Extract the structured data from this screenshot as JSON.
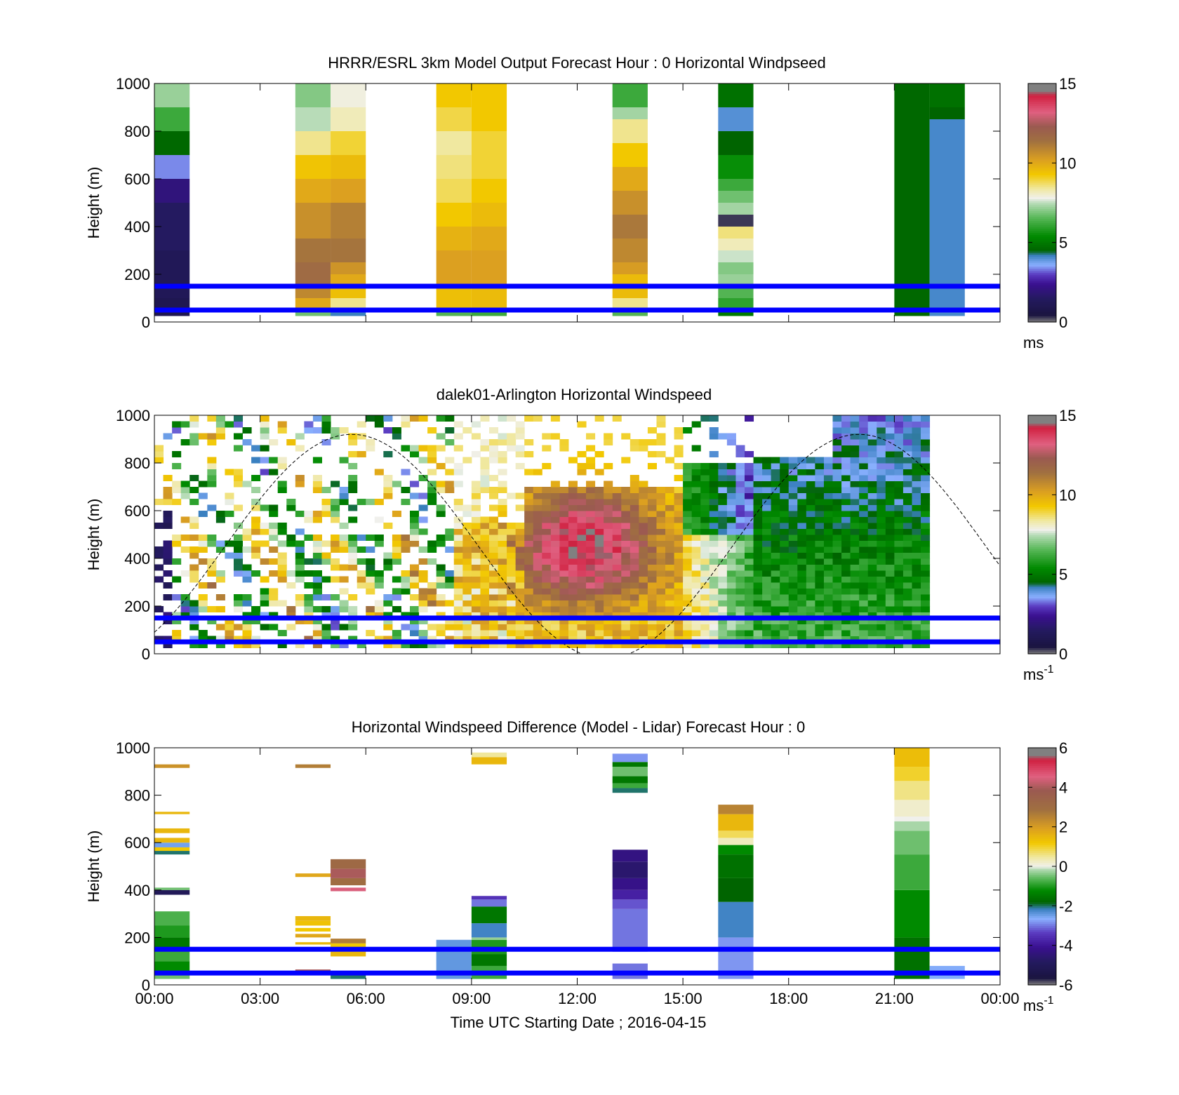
{
  "colors": {
    "reference_line": "#0000ff",
    "speed_colormap": [
      [
        0,
        "#808080"
      ],
      [
        0.03,
        "#1a1440"
      ],
      [
        0.1,
        "#241a60"
      ],
      [
        0.16,
        "#3a1090"
      ],
      [
        0.2,
        "#5a3ac0"
      ],
      [
        0.24,
        "#8ab0ff"
      ],
      [
        0.28,
        "#3a80c0"
      ],
      [
        0.3,
        "#006400"
      ],
      [
        0.36,
        "#008a00"
      ],
      [
        0.44,
        "#5ab85a"
      ],
      [
        0.5,
        "#b8dcb8"
      ],
      [
        0.52,
        "#f0f0ec"
      ],
      [
        0.56,
        "#f0e8a0"
      ],
      [
        0.62,
        "#f2c800"
      ],
      [
        0.68,
        "#dca020"
      ],
      [
        0.76,
        "#a07040"
      ],
      [
        0.82,
        "#9a5a50"
      ],
      [
        0.88,
        "#e06080"
      ],
      [
        0.95,
        "#d02040"
      ],
      [
        0.97,
        "#808080"
      ],
      [
        1,
        "#808080"
      ]
    ],
    "diff_colormap": [
      [
        0,
        "#808080"
      ],
      [
        0.03,
        "#1a1440"
      ],
      [
        0.1,
        "#241a60"
      ],
      [
        0.16,
        "#3a1090"
      ],
      [
        0.22,
        "#5a3ac0"
      ],
      [
        0.28,
        "#8ab0ff"
      ],
      [
        0.32,
        "#3a80c0"
      ],
      [
        0.35,
        "#006400"
      ],
      [
        0.4,
        "#008a00"
      ],
      [
        0.45,
        "#5ab85a"
      ],
      [
        0.49,
        "#b8dcb8"
      ],
      [
        0.5,
        "#f0f0ec"
      ],
      [
        0.54,
        "#f0e8a0"
      ],
      [
        0.6,
        "#f2c800"
      ],
      [
        0.66,
        "#dca020"
      ],
      [
        0.74,
        "#a07040"
      ],
      [
        0.82,
        "#9a5a50"
      ],
      [
        0.88,
        "#e06080"
      ],
      [
        0.95,
        "#d02040"
      ],
      [
        0.97,
        "#808080"
      ],
      [
        1,
        "#808080"
      ]
    ]
  },
  "shared": {
    "xlabel": "Time UTC  Starting Date ; 2016-04-15",
    "ylabel": "Height (m)",
    "x_ticks": [
      "00:00",
      "03:00",
      "06:00",
      "09:00",
      "12:00",
      "15:00",
      "18:00",
      "21:00",
      "00:00"
    ],
    "y_ticks": [
      "0",
      "200",
      "400",
      "600",
      "800",
      "1000"
    ]
  },
  "chart_data": [
    {
      "type": "heatmap",
      "title": "HRRR/ESRL 3km Model Output   Forecast Hour : 0 Horizontal Windpseed",
      "ylabel": "Height (m)",
      "xlim": [
        0,
        24
      ],
      "ylim": [
        0,
        1000
      ],
      "colorbar": {
        "label": "ms",
        "ticks": [
          "0",
          "5",
          "10",
          "15"
        ],
        "range": [
          0,
          15
        ]
      },
      "reference_lines_m": [
        50,
        150
      ],
      "columns": [
        {
          "t_start": 0,
          "t_end": 1,
          "cells": [
            [
              25,
              100,
              1
            ],
            [
              100,
              300,
              1.2
            ],
            [
              300,
              500,
              1.5
            ],
            [
              500,
              600,
              2
            ],
            [
              600,
              700,
              3.4
            ],
            [
              700,
              800,
              4.6
            ],
            [
              800,
              900,
              6.2
            ],
            [
              900,
              1000,
              7.2
            ]
          ]
        },
        {
          "t_start": 4,
          "t_end": 5,
          "cells": [
            [
              25,
              50,
              6.8
            ],
            [
              50,
              100,
              10
            ],
            [
              100,
              150,
              10.8
            ],
            [
              150,
              250,
              11.6
            ],
            [
              250,
              350,
              11.3
            ],
            [
              350,
              500,
              10.6
            ],
            [
              500,
              600,
              10
            ],
            [
              600,
              700,
              9.4
            ],
            [
              700,
              800,
              8.5
            ],
            [
              800,
              900,
              7.5
            ],
            [
              900,
              1000,
              7.0
            ]
          ]
        },
        {
          "t_start": 5,
          "t_end": 6,
          "cells": [
            [
              25,
              50,
              4.2
            ],
            [
              50,
              100,
              8.5
            ],
            [
              100,
              150,
              9.5
            ],
            [
              150,
              200,
              10
            ],
            [
              200,
              250,
              10.5
            ],
            [
              250,
              350,
              11.3
            ],
            [
              350,
              500,
              11.0
            ],
            [
              500,
              600,
              10.2
            ],
            [
              600,
              700,
              9.6
            ],
            [
              700,
              800,
              9.0
            ],
            [
              800,
              900,
              8.2
            ],
            [
              900,
              1000,
              7.9
            ]
          ]
        },
        {
          "t_start": 8,
          "t_end": 9,
          "cells": [
            [
              25,
              50,
              6.5
            ],
            [
              50,
              150,
              9.5
            ],
            [
              150,
              300,
              10.2
            ],
            [
              300,
              400,
              9.8
            ],
            [
              400,
              500,
              9.3
            ],
            [
              500,
              600,
              8.8
            ],
            [
              600,
              700,
              8.6
            ],
            [
              700,
              800,
              8.4
            ],
            [
              800,
              900,
              8.9
            ],
            [
              900,
              1000,
              9.3
            ]
          ]
        },
        {
          "t_start": 9,
          "t_end": 10,
          "cells": [
            [
              25,
              50,
              6.2
            ],
            [
              50,
              150,
              9.6
            ],
            [
              150,
              300,
              10.2
            ],
            [
              300,
              400,
              10.0
            ],
            [
              400,
              500,
              9.6
            ],
            [
              500,
              600,
              9.3
            ],
            [
              600,
              700,
              9.0
            ],
            [
              700,
              800,
              9.0
            ],
            [
              800,
              1000,
              9.3
            ]
          ]
        },
        {
          "t_start": 13,
          "t_end": 14,
          "cells": [
            [
              25,
              50,
              6.5
            ],
            [
              50,
              100,
              8.5
            ],
            [
              100,
              200,
              9.6
            ],
            [
              200,
              250,
              10.3
            ],
            [
              250,
              350,
              10.8
            ],
            [
              350,
              450,
              11.2
            ],
            [
              450,
              550,
              10.6
            ],
            [
              550,
              650,
              10
            ],
            [
              650,
              750,
              9.3
            ],
            [
              750,
              850,
              8.5
            ],
            [
              850,
              900,
              7.3
            ],
            [
              900,
              1000,
              6.2
            ]
          ]
        },
        {
          "t_start": 16,
          "t_end": 17,
          "cells": [
            [
              25,
              50,
              5.0
            ],
            [
              50,
              100,
              6.0
            ],
            [
              100,
              150,
              6.5
            ],
            [
              150,
              200,
              7.2
            ],
            [
              200,
              250,
              7.0
            ],
            [
              250,
              300,
              7.6
            ],
            [
              300,
              350,
              8.2
            ],
            [
              350,
              400,
              8.6
            ],
            [
              400,
              450,
              0.3
            ],
            [
              450,
              500,
              7.3
            ],
            [
              500,
              550,
              6.8
            ],
            [
              550,
              600,
              6.2
            ],
            [
              600,
              700,
              5.5
            ],
            [
              700,
              800,
              4.5
            ],
            [
              800,
              900,
              4.0
            ],
            [
              900,
              1000,
              4.8
            ]
          ]
        },
        {
          "t_start": 21,
          "t_end": 22,
          "cells": [
            [
              25,
              1000,
              4.6
            ]
          ]
        },
        {
          "t_start": 22,
          "t_end": 23,
          "cells": [
            [
              25,
              850,
              4.1
            ],
            [
              850,
              900,
              4.5
            ],
            [
              900,
              1000,
              4.8
            ]
          ]
        }
      ]
    },
    {
      "type": "heatmap",
      "title": "dalek01-Arlington  Horizontal Windspeed",
      "ylabel": "Height (m)",
      "xlim": [
        0,
        24
      ],
      "ylim": [
        0,
        1000
      ],
      "colorbar": {
        "label": "ms",
        "label_exponent": "-1",
        "ticks": [
          "0",
          "5",
          "10",
          "15"
        ],
        "range": [
          0,
          15
        ]
      },
      "reference_lines_m": [
        50,
        150
      ],
      "overlay": "dashed sinusoidal curve, minimum near 12:50 UTC, maximum near 900 m at 20:00 UTC",
      "description": "lidar windspeed field 00:00-22:00 UTC, 25-1000 m; sparse brown/yellow/green values before 09:00, strong 12-14 m/s core at 350-550 m between 10:00 and 14:30, yellow 8-10 m/s near 15:00-16:30, green 3-7 m/s after 17:00 up to 1000 m"
    },
    {
      "type": "heatmap",
      "title": "Horizontal Windspeed Difference (Model - Lidar) Forecast Hour : 0",
      "xlabel": "Time UTC  Starting Date ; 2016-04-15",
      "ylabel": "Height (m)",
      "xlim": [
        0,
        24
      ],
      "ylim": [
        0,
        1000
      ],
      "colorbar": {
        "label": "ms",
        "label_exponent": "-1",
        "ticks": [
          "-6",
          "-4",
          "-2",
          "0",
          "2",
          "4",
          "6"
        ],
        "range": [
          -6,
          6
        ]
      },
      "reference_lines_m": [
        50,
        150
      ],
      "columns": [
        {
          "t_start": 0,
          "t_end": 1,
          "cells": [
            [
              25,
              50,
              -0.5
            ],
            [
              50,
              100,
              -1.2
            ],
            [
              100,
              150,
              -0.8
            ],
            [
              150,
              200,
              -1.5
            ],
            [
              200,
              250,
              -1.0
            ],
            [
              250,
              310,
              -0.7
            ],
            [
              380,
              400,
              -5
            ],
            [
              400,
              410,
              -0.5
            ],
            [
              550,
              565,
              -2
            ],
            [
              565,
              580,
              1.2
            ],
            [
              580,
              600,
              -2.5
            ],
            [
              600,
              620,
              1.5
            ],
            [
              640,
              660,
              1.5
            ],
            [
              720,
              730,
              1.5
            ],
            [
              915,
              930,
              2.2
            ]
          ]
        },
        {
          "t_start": 4,
          "t_end": 5,
          "cells": [
            [
              50,
              65,
              4
            ],
            [
              170,
              180,
              1.5
            ],
            [
              200,
              215,
              1.8
            ],
            [
              225,
              240,
              1.2
            ],
            [
              250,
              270,
              1.3
            ],
            [
              270,
              290,
              1.5
            ],
            [
              455,
              470,
              1.8
            ],
            [
              915,
              930,
              2.6
            ]
          ]
        },
        {
          "t_start": 5,
          "t_end": 6,
          "cells": [
            [
              25,
              40,
              -2
            ],
            [
              120,
              140,
              1.5
            ],
            [
              140,
              175,
              1.2
            ],
            [
              175,
              195,
              2.6
            ],
            [
              395,
              410,
              4.5
            ],
            [
              420,
              450,
              3.0
            ],
            [
              450,
              490,
              4.0
            ],
            [
              490,
              530,
              3.2
            ]
          ]
        },
        {
          "t_start": 8,
          "t_end": 9,
          "cells": [
            [
              25,
              190,
              -2.4
            ]
          ]
        },
        {
          "t_start": 9,
          "t_end": 10,
          "cells": [
            [
              25,
              80,
              -0.8
            ],
            [
              80,
              130,
              -1.5
            ],
            [
              130,
              190,
              -1.0
            ],
            [
              190,
              200,
              -0.3
            ],
            [
              200,
              260,
              -2.2
            ],
            [
              260,
              330,
              -1.5
            ],
            [
              330,
              360,
              -3.0
            ],
            [
              360,
              375,
              -3.5
            ],
            [
              930,
              960,
              1.5
            ],
            [
              960,
              980,
              0.5
            ]
          ]
        },
        {
          "t_start": 13,
          "t_end": 14,
          "cells": [
            [
              25,
              90,
              -3.0
            ],
            [
              140,
              320,
              -3.0
            ],
            [
              320,
              360,
              -3.2
            ],
            [
              360,
              400,
              -3.8
            ],
            [
              400,
              450,
              -4.2
            ],
            [
              450,
              520,
              -4.6
            ],
            [
              520,
              570,
              -4.3
            ],
            [
              810,
              830,
              -2.0
            ],
            [
              830,
              850,
              -0.8
            ],
            [
              850,
              880,
              -1.5
            ],
            [
              880,
              920,
              -0.5
            ],
            [
              920,
              940,
              -1.5
            ],
            [
              940,
              975,
              -2.8
            ]
          ]
        },
        {
          "t_start": 16,
          "t_end": 17,
          "cells": [
            [
              25,
              200,
              -2.8
            ],
            [
              200,
              350,
              -2.2
            ],
            [
              350,
              450,
              -1.8
            ],
            [
              450,
              550,
              -1.6
            ],
            [
              550,
              590,
              -1.2
            ],
            [
              590,
              620,
              0.3
            ],
            [
              620,
              650,
              0.8
            ],
            [
              650,
              720,
              1.5
            ],
            [
              720,
              760,
              2.5
            ]
          ]
        },
        {
          "t_start": 21,
          "t_end": 22,
          "cells": [
            [
              25,
              200,
              -1.6
            ],
            [
              200,
              400,
              -1.2
            ],
            [
              400,
              550,
              -0.8
            ],
            [
              550,
              650,
              -0.5
            ],
            [
              650,
              690,
              -0.2
            ],
            [
              690,
              710,
              0.0
            ],
            [
              710,
              780,
              0.2
            ],
            [
              780,
              860,
              0.6
            ],
            [
              860,
              920,
              1.0
            ],
            [
              920,
              1000,
              1.4
            ]
          ]
        },
        {
          "t_start": 22,
          "t_end": 23,
          "cells": [
            [
              25,
              80,
              -2.6
            ]
          ]
        }
      ]
    }
  ]
}
